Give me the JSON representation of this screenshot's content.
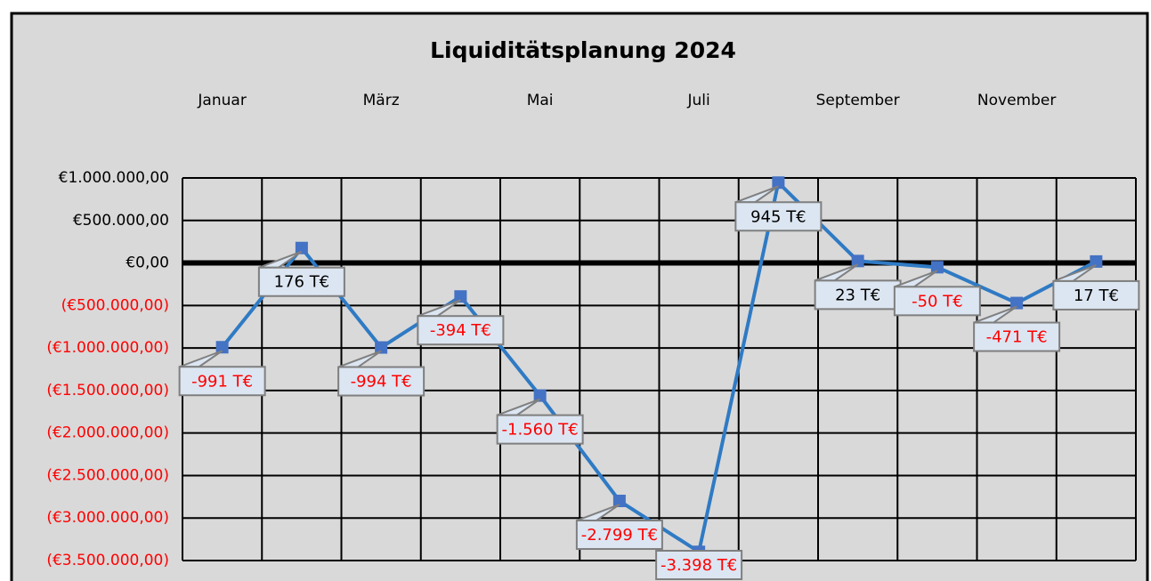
{
  "chart_data": {
    "type": "line",
    "title": "Liquiditätsplanung 2024",
    "categories": [
      "Januar",
      null,
      "März",
      null,
      "Mai",
      null,
      "Juli",
      null,
      "September",
      null,
      "November",
      null
    ],
    "series": [
      {
        "name": null,
        "color": "#2f7ac4",
        "marker_color": "#4472c4",
        "values": [
          -991000,
          176000,
          -994000,
          -394000,
          -1560000,
          -2799000,
          -3398000,
          945000,
          23000,
          -50000,
          -471000,
          17000
        ]
      }
    ],
    "value_labels": [
      "-991 T€",
      "176 T€",
      "-994 T€",
      "-394 T€",
      "-1.560 T€",
      "-2.799 T€",
      "-3.398 T€",
      "945 T€",
      "23 T€",
      "-50 T€",
      "-471 T€",
      "17 T€"
    ],
    "negative_color": "#ff0000",
    "ylim": [
      -3500000,
      1000000
    ],
    "yticks": [
      {
        "value": -3500000,
        "label": "(€3.500.000,00)"
      },
      {
        "value": -3000000,
        "label": "(€3.000.000,00)"
      },
      {
        "value": -2500000,
        "label": "(€2.500.000,00)"
      },
      {
        "value": -2000000,
        "label": "(€2.000.000,00)"
      },
      {
        "value": -1500000,
        "label": "(€1.500.000,00)"
      },
      {
        "value": -1000000,
        "label": "(€1.000.000,00)"
      },
      {
        "value": -500000,
        "label": "(€500.000,00)"
      },
      {
        "value": 0,
        "label": "€0,00"
      },
      {
        "value": 500000,
        "label": "€500.000,00"
      },
      {
        "value": 1000000,
        "label": "€1.000.000,00"
      }
    ],
    "grid": true
  }
}
